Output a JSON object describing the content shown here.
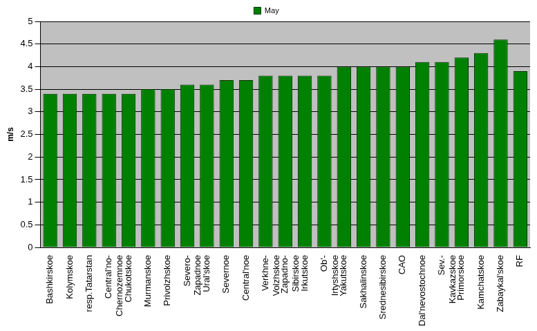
{
  "chart_data": {
    "type": "bar",
    "y_label": "m/s",
    "categories": [
      "Bashkirskoe",
      "Kolymskoe",
      "resp.Tatarstan",
      "Central'no-\nChernozemnoe",
      "Chukotskoe",
      "Murmanskoe",
      "Privolzhskoe",
      "Severo-\nZapadnoe",
      "Ural'skoe",
      "Severnoe",
      "Central'noe",
      "Verkhne-\nVolzhskoe",
      "Zapadno-\nSibirskoe",
      "Irkutskoe",
      "Ob'-\nIrtyshskoe",
      "Yakutskoe",
      "Sakhalinskoe",
      "Srednesibirskoe",
      "CAO",
      "Dal'nevostochnoe",
      "Sev.-\nKavkazskoe",
      "Primorskoe",
      "Kamchatskoe",
      "Zabaykal'skoe",
      "RF"
    ],
    "series": [
      {
        "name": "May",
        "color": "#008000",
        "values": [
          3.4,
          3.4,
          3.4,
          3.4,
          3.4,
          3.5,
          3.5,
          3.6,
          3.6,
          3.7,
          3.7,
          3.8,
          3.8,
          3.8,
          3.8,
          4.0,
          4.0,
          4.0,
          4.0,
          4.1,
          4.1,
          4.2,
          4.3,
          4.6,
          3.9
        ]
      }
    ],
    "ylim": [
      0,
      5
    ],
    "yticks": [
      0,
      0.5,
      1,
      1.5,
      2,
      2.5,
      3,
      3.5,
      4,
      4.5,
      5
    ],
    "grid": true,
    "legend": "top"
  }
}
